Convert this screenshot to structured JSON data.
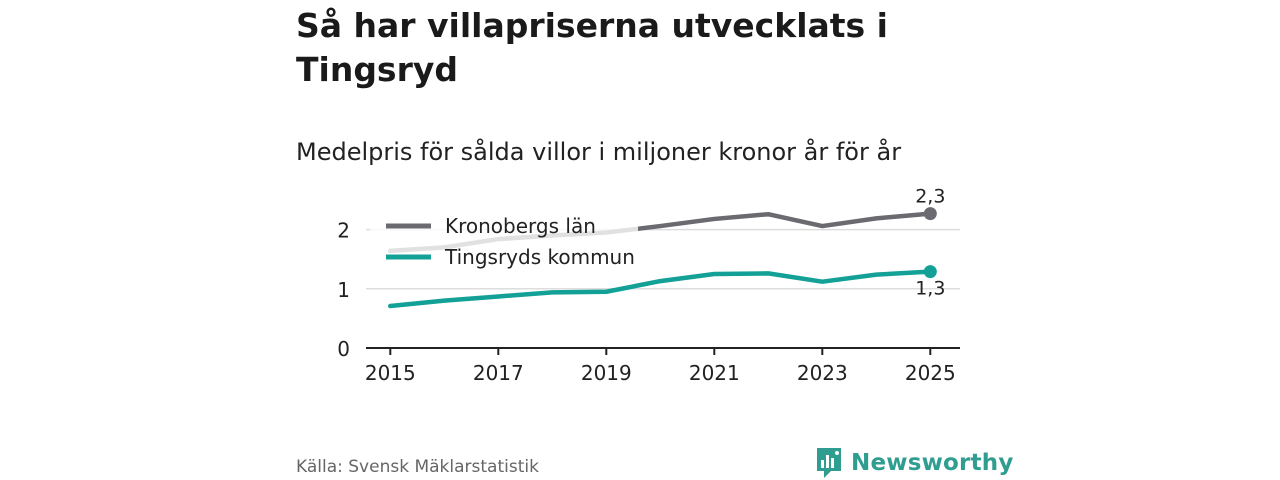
{
  "title": "Så har villapriserna utvecklats i Tingsryd",
  "subtitle": "Medelpris för sålda villor i miljoner kronor år för år",
  "source": "Källa: Svensk Mäklarstatistik",
  "brand": "Newsworthy",
  "colors": {
    "kronoberg": "#6b6a70",
    "tingsryd": "#13a096",
    "grid": "#dddddd",
    "axis": "#222222",
    "brand": "#2f9d8f"
  },
  "chart_data": {
    "type": "line",
    "title": "Så har villapriserna utvecklats i Tingsryd",
    "subtitle": "Medelpris för sålda villor i miljoner kronor år för år",
    "xlabel": "",
    "ylabel": "",
    "x": [
      2015,
      2016,
      2017,
      2018,
      2019,
      2020,
      2021,
      2022,
      2023,
      2024,
      2025
    ],
    "xticks": [
      "2015",
      "2017",
      "2019",
      "2021",
      "2023",
      "2025"
    ],
    "yticks": [
      "0",
      "1",
      "2"
    ],
    "ylim": [
      0,
      2.5
    ],
    "xlim": [
      2014.55,
      2025.55
    ],
    "legend_position": "top-left",
    "series": [
      {
        "name": "Kronobergs län",
        "values": [
          1.64,
          1.7,
          1.84,
          1.9,
          1.95,
          2.06,
          2.18,
          2.26,
          2.06,
          2.19,
          2.27
        ],
        "end_label": "2,3",
        "end_label_position": "above"
      },
      {
        "name": "Tingsryds kommun",
        "values": [
          0.71,
          0.8,
          0.87,
          0.94,
          0.95,
          1.13,
          1.25,
          1.26,
          1.12,
          1.24,
          1.29
        ],
        "end_label": "1,3",
        "end_label_position": "below"
      }
    ]
  }
}
